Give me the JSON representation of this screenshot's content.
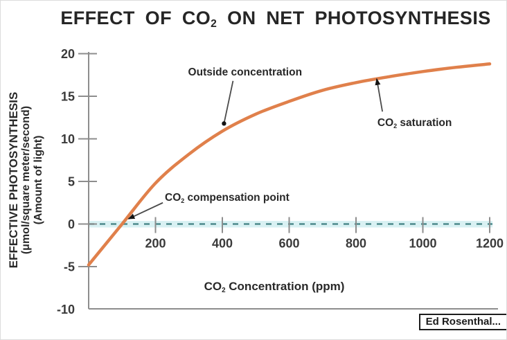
{
  "labels": {
    "title": {
      "pre": "EFFECT OF CO",
      "sub": "2",
      "post": " ON NET PHOTOSYNTHESIS"
    },
    "xlabel": {
      "pre": "CO",
      "sub": "2",
      "post": " Concentration (ppm)"
    },
    "ylabel_lines": [
      "EFFECTIVE PHOTOSYNTHESIS",
      "(μmol/square meter/second)",
      "(Amount of light)"
    ],
    "credit": "Ed Rosenthal..."
  },
  "colors": {
    "curve": "#e0804b",
    "dash": "#4e8a8c",
    "dash_band": "#d9f1f3",
    "axis": "#8d8d8d",
    "tick_text": "#3a3a3a",
    "text": "#282828",
    "pointer": "#4a4a4a",
    "marker": "#141414"
  },
  "chart_data": {
    "type": "line",
    "title": "EFFECT OF CO2 ON NET PHOTOSYNTHESIS",
    "xlabel": "CO2 Concentration (ppm)",
    "ylabel": "EFFECTIVE PHOTOSYNTHESIS (μmol/square meter/second) (Amount of light)",
    "xlim": [
      0,
      1200
    ],
    "ylim": [
      -10,
      20
    ],
    "xticks": [
      200,
      400,
      600,
      800,
      1000,
      1200
    ],
    "yticks": [
      20,
      15,
      10,
      5,
      0,
      -5,
      -10
    ],
    "grid": false,
    "legend": "none",
    "zero_line": {
      "value": 0,
      "style": "dashed"
    },
    "series": [
      {
        "name": "Net photosynthesis",
        "points": [
          [
            0,
            -4.8
          ],
          [
            100,
            0
          ],
          [
            200,
            4.8
          ],
          [
            300,
            8.2
          ],
          [
            400,
            10.9
          ],
          [
            500,
            12.9
          ],
          [
            600,
            14.4
          ],
          [
            700,
            15.7
          ],
          [
            800,
            16.6
          ],
          [
            900,
            17.3
          ],
          [
            1000,
            17.9
          ],
          [
            1100,
            18.4
          ],
          [
            1200,
            18.8
          ]
        ]
      }
    ],
    "annotations": [
      {
        "id": "outside-concentration",
        "text": {
          "pre": "Outside concentration",
          "sub": "",
          "post": ""
        },
        "align": "center",
        "label_at": [
          468,
          17.8
        ],
        "arrow_from": [
          432,
          16.8
        ],
        "arrow_to": [
          405,
          11.8
        ],
        "marker": "dot"
      },
      {
        "id": "co2-compensation-point",
        "text": {
          "pre": "CO",
          "sub": "2",
          "post": " compensation point"
        },
        "align": "left",
        "label_at": [
          228,
          3.05
        ],
        "arrow_from": [
          222,
          2.5
        ],
        "arrow_to": [
          119,
          0.6
        ],
        "marker": "arrow"
      },
      {
        "id": "co2-saturation",
        "text": {
          "pre": "CO",
          "sub": "2",
          "post": " saturation"
        },
        "align": "left",
        "label_at": [
          864,
          11.8
        ],
        "arrow_from": [
          879,
          13.2
        ],
        "arrow_to": [
          862,
          17.05
        ],
        "marker": "arrow"
      }
    ]
  }
}
